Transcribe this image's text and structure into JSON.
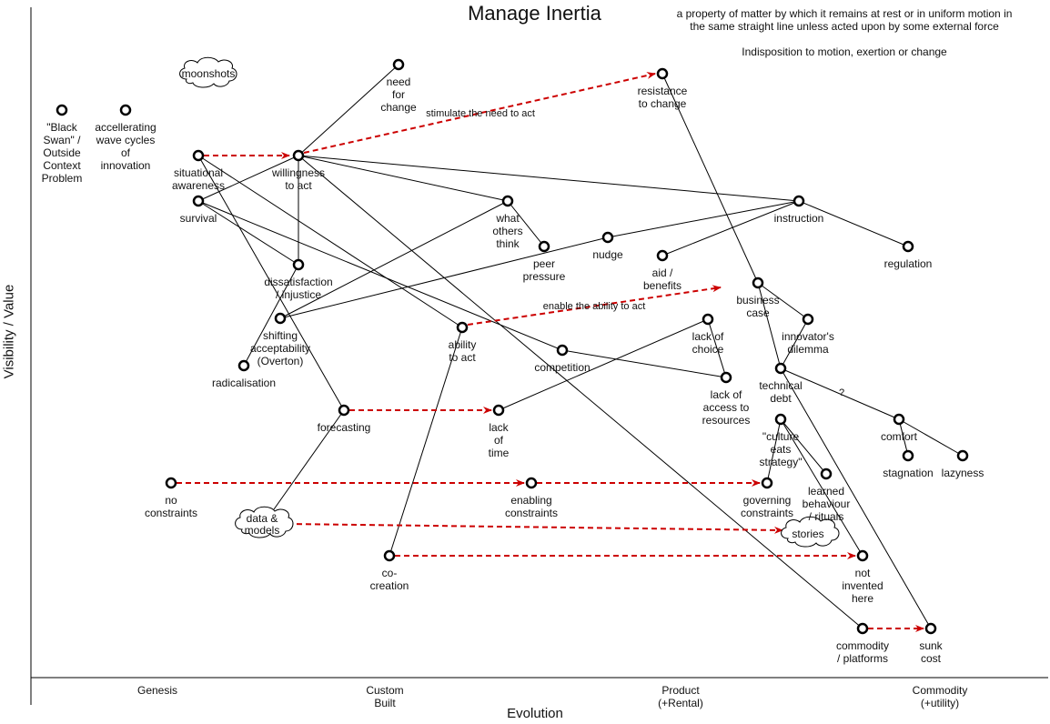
{
  "title": "Manage Inertia",
  "definition_line1": "a property of matter by which it remains at rest or in uniform motion in",
  "definition_line2": "the same straight line unless acted upon by some external force",
  "definition_line3": "Indisposition to motion, exertion or change",
  "y_axis_label": "Visibility / Value",
  "x_axis_label": "Evolution",
  "stages": [
    {
      "lines": [
        "Genesis"
      ]
    },
    {
      "lines": [
        "Custom",
        "Built"
      ]
    },
    {
      "lines": [
        "Product",
        "(+Rental)"
      ]
    },
    {
      "lines": [
        "Commodity",
        "(+utility)"
      ]
    }
  ],
  "nodes": {
    "black_swan": [
      "\"Black",
      "Swan\" /",
      "Outside",
      "Context",
      "Problem"
    ],
    "accel": [
      "accellerating",
      "wave cycles",
      "of",
      "innovation"
    ],
    "need_change": [
      "need",
      "for",
      "change"
    ],
    "resistance": [
      "resistance",
      "to change"
    ],
    "situational": [
      "situational",
      "awareness"
    ],
    "willingness": [
      "willingness",
      "to act"
    ],
    "survival": [
      "survival"
    ],
    "what_others": [
      "what",
      "others",
      "think"
    ],
    "instruction": [
      "instruction"
    ],
    "peer": [
      "peer",
      "pressure"
    ],
    "nudge": [
      "nudge"
    ],
    "aid": [
      "aid /",
      "benefits"
    ],
    "regulation": [
      "regulation"
    ],
    "dissatisfaction": [
      "dissatisfaction",
      "/ injustice"
    ],
    "business_case": [
      "business",
      "case"
    ],
    "shifting": [
      "shifting",
      "acceptability",
      "(Overton)"
    ],
    "lack_choice": [
      "lack of",
      "choice"
    ],
    "innovators": [
      "innovator's",
      "dilemma"
    ],
    "ability": [
      "ability",
      "to act"
    ],
    "competition": [
      "competition"
    ],
    "radicalisation": [
      "radicalisation"
    ],
    "technical_debt": [
      "technical",
      "debt"
    ],
    "lack_access": [
      "lack of",
      "access to",
      "resources"
    ],
    "forecasting": [
      "forecasting"
    ],
    "lack_time": [
      "lack",
      "of",
      "time"
    ],
    "culture": [
      "\"culture",
      "eats",
      "strategy\""
    ],
    "comfort": [
      "comfort"
    ],
    "stagnation": [
      "stagnation"
    ],
    "lazyness": [
      "lazyness"
    ],
    "learned": [
      "learned",
      "behaviour",
      "/ rituals"
    ],
    "no_constraints": [
      "no",
      "constraints"
    ],
    "enabling": [
      "enabling",
      "constraints"
    ],
    "governing": [
      "governing",
      "constraints"
    ],
    "co_creation": [
      "co-",
      "creation"
    ],
    "not_invented": [
      "not",
      "invented",
      "here"
    ],
    "commodity": [
      "commodity",
      "/ platforms"
    ],
    "sunk": [
      "sunk",
      "cost"
    ]
  },
  "clouds": {
    "moonshots": [
      "moonshots"
    ],
    "data_models": [
      "data &",
      "models"
    ],
    "stories": [
      "stories"
    ]
  },
  "annotations": {
    "stimulate": "stimulate the need to act",
    "enable": "enable the ability to act",
    "question": "?"
  },
  "colors": {
    "flow_arrow": "#cc0000",
    "link": "#000000",
    "node_fill": "#ffffff"
  }
}
